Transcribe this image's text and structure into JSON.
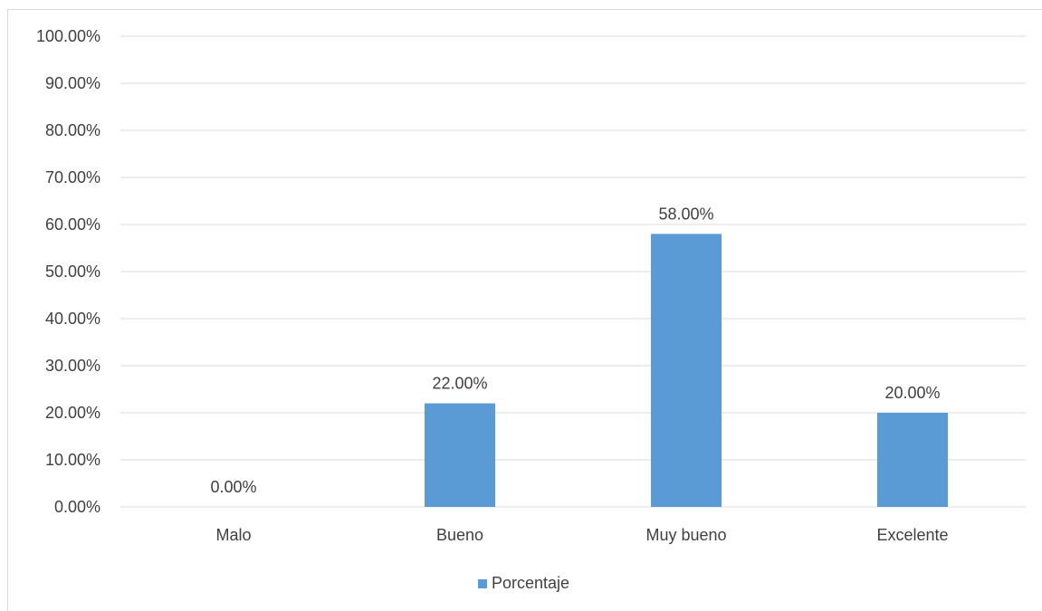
{
  "chart_data": {
    "type": "bar",
    "categories": [
      "Malo",
      "Bueno",
      "Muy bueno",
      "Excelente"
    ],
    "series": [
      {
        "name": "Porcentaje",
        "values": [
          0,
          22,
          58,
          20
        ]
      }
    ],
    "data_labels": [
      "0.00%",
      "22.00%",
      "58.00%",
      "20.00%"
    ],
    "y_ticks": [
      "0.00%",
      "10.00%",
      "20.00%",
      "30.00%",
      "40.00%",
      "50.00%",
      "60.00%",
      "70.00%",
      "80.00%",
      "90.00%",
      "100.00%"
    ],
    "ylim": [
      0,
      100
    ],
    "grid": true,
    "legend_position": "bottom",
    "bar_color": "#5b9bd5",
    "grid_color": "#d9d9d9"
  }
}
